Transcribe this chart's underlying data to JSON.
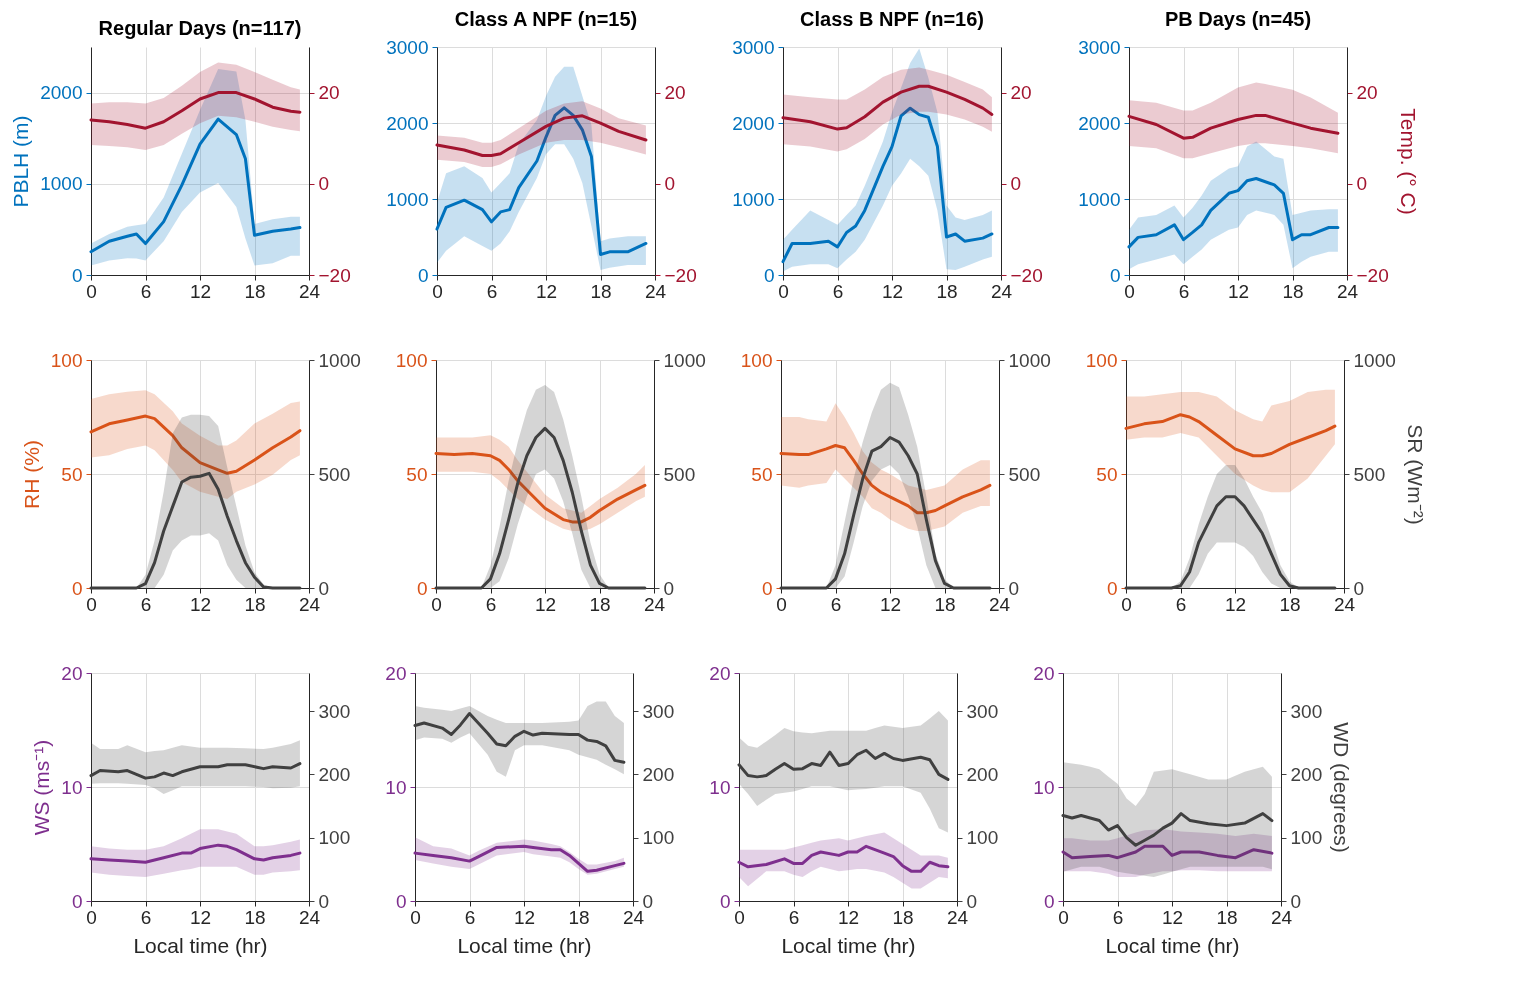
{
  "chart_data": [
    {
      "type": "line",
      "title": "Regular Days (n=117)",
      "ylabel": "PBLH (m)",
      "xlim": [
        0,
        24
      ],
      "xticks": [
        0,
        6,
        12,
        18,
        24
      ],
      "ylim": [
        0,
        2500
      ],
      "yticks": [
        0,
        1000,
        2000
      ],
      "y2lim": [
        -20,
        30
      ],
      "y2ticks": [
        -20,
        0,
        20
      ],
      "grid": true,
      "series": [
        {
          "color": "#0072bd",
          "x": [
            0,
            2,
            4,
            5,
            6,
            8,
            10,
            12,
            14,
            16,
            17,
            18,
            20,
            22,
            23
          ],
          "values": [
            255,
            370,
            425,
            450,
            345,
            585,
            985,
            1435,
            1710,
            1540,
            1275,
            435,
            480,
            505,
            520
          ],
          "lower": [
            105,
            160,
            185,
            180,
            160,
            370,
            690,
            905,
            1010,
            745,
            400,
            105,
            130,
            210,
            210
          ],
          "upper": [
            345,
            450,
            530,
            545,
            560,
            850,
            1330,
            1810,
            2260,
            2230,
            1700,
            560,
            610,
            640,
            640
          ]
        },
        {
          "color": "#a2142f",
          "axis": "y2",
          "x": [
            0,
            2,
            4,
            6,
            8,
            10,
            12,
            14,
            16,
            18,
            20,
            22,
            23
          ],
          "values": [
            14.0,
            13.6,
            13.0,
            12.2,
            13.6,
            16.0,
            18.6,
            20.0,
            20.0,
            18.6,
            16.8,
            15.9,
            15.7
          ],
          "lower": [
            8.5,
            8.3,
            8.0,
            7.4,
            8.5,
            11.0,
            13.3,
            14.9,
            14.6,
            13.6,
            12.5,
            11.8,
            11.5
          ],
          "upper": [
            17.6,
            17.9,
            17.9,
            17.6,
            18.8,
            21.5,
            24.5,
            26.6,
            26.1,
            24.5,
            22.8,
            21.2,
            20.7
          ]
        }
      ]
    },
    {
      "type": "line",
      "title": "Class A NPF (n=15)",
      "xlim": [
        0,
        24
      ],
      "xticks": [
        0,
        6,
        12,
        18,
        24
      ],
      "ylim": [
        0,
        3000
      ],
      "yticks": [
        0,
        1000,
        2000,
        3000
      ],
      "y2lim": [
        -20,
        30
      ],
      "y2ticks": [
        -20,
        0,
        20
      ],
      "grid": true,
      "series": [
        {
          "color": "#0072bd",
          "x": [
            0,
            1,
            3,
            5,
            6,
            7,
            8,
            9,
            11,
            12,
            13,
            14,
            15,
            16,
            17,
            18,
            19,
            21,
            23
          ],
          "values": [
            605,
            890,
            985,
            860,
            700,
            830,
            860,
            1150,
            1500,
            1815,
            2100,
            2200,
            2100,
            1910,
            1560,
            270,
            305,
            305,
            415
          ],
          "lower": [
            160,
            320,
            510,
            380,
            320,
            415,
            575,
            830,
            1275,
            1590,
            1720,
            1720,
            1530,
            1210,
            640,
            65,
            95,
            130,
            130
          ],
          "upper": [
            955,
            1340,
            1430,
            1275,
            1085,
            1210,
            1340,
            1720,
            2040,
            2355,
            2610,
            2740,
            2740,
            2355,
            1975,
            445,
            480,
            510,
            510
          ]
        },
        {
          "color": "#a2142f",
          "axis": "y2",
          "x": [
            0,
            3,
            5,
            6,
            7,
            9,
            12,
            14,
            16,
            18,
            20,
            23
          ],
          "values": [
            8.5,
            7.4,
            6.2,
            6.2,
            6.6,
            9.0,
            12.6,
            14.4,
            14.9,
            13.3,
            11.5,
            9.6
          ],
          "lower": [
            5.3,
            4.8,
            3.7,
            3.7,
            4.3,
            6.4,
            9.0,
            9.6,
            9.6,
            9.0,
            8.0,
            6.4
          ],
          "upper": [
            10.6,
            10.1,
            9.0,
            9.0,
            9.6,
            12.2,
            16.0,
            17.6,
            18.1,
            16.5,
            14.4,
            12.8
          ]
        }
      ]
    },
    {
      "type": "line",
      "title": "Class B NPF (n=16)",
      "xlim": [
        0,
        24
      ],
      "xticks": [
        0,
        6,
        12,
        18,
        24
      ],
      "ylim": [
        0,
        3000
      ],
      "yticks": [
        0,
        1000,
        2000,
        3000
      ],
      "y2lim": [
        -20,
        30
      ],
      "y2ticks": [
        -20,
        0,
        20
      ],
      "grid": true,
      "series": [
        {
          "color": "#0072bd",
          "x": [
            0,
            1,
            3,
            5,
            6,
            7,
            8,
            9,
            11,
            12,
            13,
            14,
            15,
            16,
            17,
            18,
            19,
            20,
            22,
            23
          ],
          "values": [
            175,
            415,
            415,
            445,
            370,
            560,
            645,
            850,
            1430,
            1690,
            2095,
            2195,
            2110,
            2075,
            1690,
            500,
            540,
            445,
            485,
            540
          ],
          "lower": [
            45,
            110,
            140,
            140,
            90,
            205,
            305,
            465,
            915,
            1175,
            1335,
            1530,
            1430,
            1305,
            850,
            75,
            65,
            110,
            205,
            240
          ],
          "upper": [
            465,
            595,
            850,
            725,
            660,
            790,
            915,
            1175,
            1755,
            2140,
            2465,
            2790,
            2980,
            2595,
            2140,
            915,
            755,
            725,
            790,
            850
          ]
        },
        {
          "color": "#a2142f",
          "axis": "y2",
          "x": [
            0,
            3,
            6,
            7,
            9,
            11,
            13,
            15,
            16,
            18,
            20,
            22,
            23
          ],
          "values": [
            14.5,
            13.6,
            12.0,
            12.3,
            14.7,
            17.9,
            20.1,
            21.4,
            21.4,
            20.1,
            18.5,
            16.6,
            15.2
          ],
          "lower": [
            8.7,
            8.2,
            7.1,
            7.6,
            9.8,
            13.0,
            15.2,
            15.8,
            15.8,
            15.2,
            14.1,
            12.5,
            11.4
          ],
          "upper": [
            19.6,
            19.0,
            18.5,
            18.5,
            20.7,
            23.4,
            25.0,
            25.5,
            25.0,
            23.9,
            22.3,
            20.7,
            19.0
          ]
        }
      ]
    },
    {
      "type": "line",
      "title": "PB Days (n=45)",
      "y2label": "Temp. (° C)",
      "xlim": [
        0,
        24
      ],
      "xticks": [
        0,
        6,
        12,
        18,
        24
      ],
      "ylim": [
        0,
        3000
      ],
      "yticks": [
        0,
        1000,
        2000,
        3000
      ],
      "y2lim": [
        -20,
        30
      ],
      "y2ticks": [
        -20,
        0,
        20
      ],
      "grid": true,
      "series": [
        {
          "color": "#0072bd",
          "x": [
            0,
            1,
            3,
            5,
            6,
            7,
            8,
            9,
            11,
            12,
            13,
            14,
            16,
            17,
            18,
            19,
            20,
            22,
            23
          ],
          "values": [
            370,
            495,
            530,
            660,
            465,
            560,
            660,
            850,
            1075,
            1110,
            1240,
            1270,
            1185,
            1075,
            465,
            530,
            530,
            625,
            625
          ],
          "lower": [
            75,
            140,
            205,
            270,
            140,
            240,
            335,
            465,
            595,
            625,
            790,
            850,
            790,
            660,
            90,
            175,
            240,
            305,
            305
          ],
          "upper": [
            595,
            755,
            790,
            915,
            755,
            885,
            1045,
            1240,
            1400,
            1430,
            1690,
            1755,
            1560,
            1530,
            790,
            820,
            850,
            865,
            865
          ]
        },
        {
          "color": "#a2142f",
          "axis": "y2",
          "x": [
            0,
            3,
            6,
            7,
            9,
            12,
            14,
            15,
            18,
            20,
            23
          ],
          "values": [
            14.8,
            13.0,
            10.0,
            10.2,
            12.2,
            14.1,
            15.0,
            15.0,
            13.3,
            12.2,
            11.1
          ],
          "lower": [
            8.3,
            7.8,
            5.6,
            5.6,
            6.7,
            8.3,
            8.9,
            8.9,
            8.3,
            7.8,
            6.7
          ],
          "upper": [
            18.3,
            17.8,
            16.1,
            16.1,
            17.8,
            21.1,
            22.2,
            21.9,
            20.6,
            18.9,
            15.6
          ]
        }
      ]
    },
    {
      "type": "line",
      "ylabel": "RH (%)",
      "xlim": [
        0,
        24
      ],
      "xticks": [
        0,
        6,
        12,
        18,
        24
      ],
      "ylim": [
        0,
        100
      ],
      "yticks": [
        0,
        50,
        100
      ],
      "y2lim": [
        0,
        1000
      ],
      "y2ticks": [
        0,
        500,
        1000
      ],
      "grid": true,
      "series": [
        {
          "color": "#d95319",
          "x": [
            0,
            2,
            4,
            6,
            7,
            9,
            10,
            12,
            14,
            15,
            16,
            18,
            20,
            22,
            23
          ],
          "values": [
            68.5,
            72,
            73.7,
            75.4,
            74.3,
            66.8,
            61.5,
            55,
            51.8,
            50.3,
            51.2,
            56.1,
            61.5,
            66.2,
            69
          ],
          "lower": [
            57.2,
            58.2,
            61,
            62.5,
            60.4,
            51.8,
            46.5,
            42.2,
            40,
            39,
            42.2,
            45.4,
            49.7,
            56.1,
            58.2
          ],
          "upper": [
            82.9,
            85,
            86.1,
            86.7,
            85,
            77.5,
            72.2,
            66.8,
            62.5,
            62.5,
            64.7,
            72.2,
            76.4,
            81.1,
            81.8
          ]
        },
        {
          "color": "#404040",
          "axis": "y2",
          "x": [
            0,
            5,
            6,
            7,
            8,
            9,
            10,
            11,
            12,
            13,
            14,
            15,
            16,
            17,
            18,
            19,
            20,
            23
          ],
          "values": [
            0,
            0,
            19,
            111,
            250,
            358,
            465,
            486,
            490,
            503,
            433,
            315,
            208,
            111,
            47,
            4,
            0,
            0
          ],
          "lower": [
            0,
            0,
            0,
            0,
            58,
            165,
            208,
            230,
            230,
            240,
            208,
            100,
            36,
            0,
            0,
            0,
            0,
            0
          ],
          "upper": [
            0,
            0,
            58,
            208,
            422,
            679,
            748,
            760,
            760,
            754,
            711,
            529,
            358,
            186,
            69,
            15,
            0,
            0
          ]
        }
      ]
    },
    {
      "type": "line",
      "xlim": [
        0,
        24
      ],
      "xticks": [
        0,
        6,
        12,
        18,
        24
      ],
      "ylim": [
        0,
        100
      ],
      "yticks": [
        0,
        50,
        100
      ],
      "y2lim": [
        0,
        1000
      ],
      "y2ticks": [
        0,
        500,
        1000
      ],
      "grid": true,
      "series": [
        {
          "color": "#d95319",
          "x": [
            0,
            2,
            4,
            6,
            7,
            8,
            9,
            10,
            12,
            14,
            15,
            16,
            17,
            18,
            20,
            22,
            23
          ],
          "values": [
            59,
            58.5,
            59,
            58,
            56,
            52,
            47,
            43,
            35,
            30,
            29,
            29,
            31,
            34,
            39,
            43,
            45
          ],
          "lower": [
            51,
            51,
            51,
            50,
            47,
            43,
            39,
            36,
            30,
            26,
            25,
            25,
            26,
            28,
            33,
            38,
            40
          ],
          "upper": [
            66,
            66,
            66,
            67,
            65,
            62,
            56,
            51,
            41,
            35,
            34,
            33,
            36,
            39,
            44,
            50,
            54
          ]
        },
        {
          "color": "#404040",
          "axis": "y2",
          "x": [
            0,
            5,
            6,
            7,
            8,
            9,
            10,
            11,
            12,
            13,
            14,
            15,
            16,
            17,
            18,
            19,
            23
          ],
          "values": [
            0,
            0,
            40,
            150,
            300,
            460,
            580,
            660,
            700,
            660,
            560,
            420,
            250,
            100,
            20,
            0,
            0
          ],
          "lower": [
            0,
            0,
            0,
            30,
            130,
            280,
            400,
            500,
            520,
            480,
            380,
            240,
            80,
            0,
            0,
            0,
            0
          ],
          "upper": [
            0,
            0,
            100,
            270,
            470,
            640,
            780,
            870,
            890,
            860,
            740,
            580,
            400,
            200,
            60,
            0,
            0
          ]
        }
      ]
    },
    {
      "type": "line",
      "xlim": [
        0,
        24
      ],
      "xticks": [
        0,
        6,
        12,
        18,
        24
      ],
      "ylim": [
        0,
        100
      ],
      "yticks": [
        0,
        50,
        100
      ],
      "y2lim": [
        0,
        1000
      ],
      "y2ticks": [
        0,
        500,
        1000
      ],
      "grid": true,
      "series": [
        {
          "color": "#d95319",
          "x": [
            0,
            2,
            3,
            5,
            6,
            7,
            8,
            9,
            10,
            11,
            12,
            14,
            15,
            16,
            17,
            18,
            20,
            22,
            23
          ],
          "values": [
            59,
            58.5,
            58.5,
            61,
            62.5,
            61.5,
            56,
            50,
            45,
            42,
            40,
            36,
            33,
            33,
            34,
            36,
            40,
            43,
            45
          ],
          "lower": [
            45,
            44,
            45,
            46,
            52,
            48,
            44,
            40,
            35,
            33,
            30,
            26,
            25,
            25,
            26,
            27,
            33,
            36,
            36
          ],
          "upper": [
            75,
            75,
            74,
            73,
            81,
            75,
            68,
            60,
            55,
            52,
            50,
            45,
            44,
            43,
            44,
            45,
            52,
            56,
            56
          ]
        },
        {
          "color": "#404040",
          "axis": "y2",
          "x": [
            0,
            5,
            6,
            7,
            8,
            9,
            10,
            11,
            12,
            13,
            14,
            15,
            16,
            17,
            18,
            19,
            23
          ],
          "values": [
            0,
            0,
            40,
            150,
            320,
            480,
            600,
            620,
            660,
            640,
            580,
            500,
            300,
            120,
            20,
            0,
            0
          ],
          "lower": [
            0,
            0,
            0,
            50,
            200,
            360,
            470,
            520,
            540,
            500,
            400,
            270,
            100,
            0,
            0,
            0,
            0
          ],
          "upper": [
            0,
            0,
            100,
            290,
            480,
            640,
            770,
            870,
            900,
            880,
            760,
            620,
            400,
            150,
            40,
            0,
            0
          ]
        }
      ]
    },
    {
      "type": "line",
      "y2label": "SR (Wm⁻²)",
      "xlim": [
        0,
        24
      ],
      "xticks": [
        0,
        6,
        12,
        18,
        24
      ],
      "ylim": [
        0,
        100
      ],
      "yticks": [
        0,
        50,
        100
      ],
      "y2lim": [
        0,
        1000
      ],
      "y2ticks": [
        0,
        500,
        1000
      ],
      "grid": true,
      "series": [
        {
          "color": "#d95319",
          "x": [
            0,
            2,
            4,
            6,
            7,
            8,
            10,
            12,
            14,
            15,
            16,
            18,
            20,
            22,
            23
          ],
          "values": [
            70,
            72,
            73,
            76,
            75,
            73,
            67,
            61,
            58,
            58,
            59,
            63,
            66,
            69,
            71
          ],
          "lower": [
            65,
            66,
            66,
            68,
            67,
            66,
            58,
            50,
            45,
            43,
            42,
            42,
            48,
            58,
            63
          ],
          "upper": [
            84,
            84,
            85,
            86,
            86,
            86,
            84,
            78,
            74,
            73,
            80,
            82,
            86,
            87,
            87
          ]
        },
        {
          "color": "#404040",
          "axis": "y2",
          "x": [
            0,
            5,
            6,
            7,
            8,
            9,
            10,
            11,
            12,
            13,
            14,
            15,
            16,
            17,
            18,
            19,
            23
          ],
          "values": [
            0,
            0,
            10,
            70,
            200,
            280,
            360,
            400,
            400,
            360,
            300,
            240,
            150,
            60,
            10,
            0,
            0
          ],
          "lower": [
            0,
            0,
            0,
            0,
            60,
            150,
            200,
            200,
            200,
            180,
            140,
            70,
            20,
            0,
            0,
            0,
            0
          ],
          "upper": [
            0,
            0,
            30,
            130,
            280,
            400,
            500,
            540,
            540,
            480,
            400,
            330,
            220,
            100,
            30,
            0,
            0
          ]
        }
      ]
    },
    {
      "type": "line",
      "xlabel": "Local time (hr)",
      "ylabel": "WS (ms⁻¹)",
      "xlim": [
        0,
        24
      ],
      "xticks": [
        0,
        6,
        12,
        18,
        24
      ],
      "ylim": [
        0,
        20
      ],
      "yticks": [
        0,
        10,
        20
      ],
      "y2lim": [
        0,
        360
      ],
      "y2ticks": [
        0,
        100,
        200,
        300
      ],
      "grid": true,
      "series": [
        {
          "color": "#7e2f8e",
          "x": [
            0,
            2,
            4,
            6,
            8,
            10,
            11,
            12,
            14,
            15,
            16,
            18,
            19,
            20,
            22,
            23
          ],
          "values": [
            3.7,
            3.6,
            3.5,
            3.4,
            3.8,
            4.2,
            4.2,
            4.6,
            4.9,
            4.8,
            4.5,
            3.7,
            3.6,
            3.8,
            4.0,
            4.2
          ],
          "lower": [
            2.5,
            2.3,
            2.2,
            2.1,
            2.4,
            2.7,
            2.8,
            3.0,
            3.0,
            3.0,
            3.0,
            2.3,
            2.3,
            2.5,
            2.6,
            2.7
          ],
          "upper": [
            4.8,
            4.6,
            4.5,
            4.5,
            4.8,
            5.5,
            5.9,
            6.3,
            6.3,
            6.1,
            5.9,
            4.8,
            4.8,
            4.9,
            5.2,
            5.4
          ]
        },
        {
          "color": "#404040",
          "axis": "y2",
          "x": [
            0,
            1,
            3,
            4,
            6,
            7,
            8,
            9,
            10,
            12,
            14,
            15,
            17,
            19,
            20,
            22,
            23
          ],
          "values": [
            198,
            206,
            204,
            206,
            194,
            196,
            202,
            198,
            204,
            212,
            212,
            215,
            215,
            209,
            212,
            210,
            217
          ],
          "lower": [
            185,
            186,
            186,
            185,
            183,
            178,
            169,
            175,
            181,
            181,
            181,
            181,
            181,
            180,
            178,
            179,
            181
          ],
          "upper": [
            250,
            240,
            240,
            246,
            235,
            237,
            238,
            242,
            246,
            242,
            242,
            242,
            241,
            240,
            242,
            248,
            254
          ]
        }
      ]
    },
    {
      "type": "line",
      "xlabel": "Local time (hr)",
      "xlim": [
        0,
        24
      ],
      "xticks": [
        0,
        6,
        12,
        18,
        24
      ],
      "ylim": [
        0,
        20
      ],
      "yticks": [
        0,
        10,
        20
      ],
      "y2lim": [
        0,
        360
      ],
      "y2ticks": [
        0,
        100,
        200,
        300
      ],
      "grid": true,
      "series": [
        {
          "color": "#7e2f8e",
          "x": [
            0,
            2,
            4,
            6,
            7,
            9,
            12,
            13,
            15,
            16,
            17,
            18,
            19,
            20,
            22,
            23
          ],
          "values": [
            4.2,
            4.0,
            3.8,
            3.5,
            3.9,
            4.7,
            4.8,
            4.7,
            4.5,
            4.5,
            4.0,
            3.3,
            2.6,
            2.7,
            3.1,
            3.3
          ],
          "lower": [
            3.6,
            3.3,
            3.0,
            2.8,
            3.2,
            4.0,
            4.3,
            4.1,
            3.9,
            3.8,
            3.4,
            2.8,
            2.3,
            2.4,
            2.8,
            3.0
          ],
          "upper": [
            5.6,
            4.8,
            4.6,
            4.0,
            4.4,
            5.1,
            5.4,
            5.3,
            5.0,
            4.8,
            4.3,
            3.7,
            3.2,
            3.2,
            3.5,
            3.8
          ]
        },
        {
          "color": "#404040",
          "axis": "y2",
          "x": [
            0,
            1,
            3,
            4,
            5,
            6,
            8,
            9,
            10,
            11,
            12,
            13,
            14,
            17,
            18,
            19,
            20,
            21,
            22,
            23
          ],
          "values": [
            277,
            281,
            273,
            263,
            278,
            296,
            265,
            248,
            245,
            260,
            268,
            262,
            265,
            263,
            263,
            254,
            252,
            245,
            222,
            219
          ],
          "lower": [
            254,
            258,
            256,
            250,
            258,
            265,
            231,
            204,
            196,
            238,
            246,
            246,
            246,
            238,
            231,
            227,
            223,
            215,
            208,
            200
          ],
          "upper": [
            308,
            305,
            302,
            300,
            304,
            308,
            292,
            286,
            281,
            281,
            281,
            281,
            281,
            283,
            285,
            308,
            315,
            315,
            292,
            281
          ]
        }
      ]
    },
    {
      "type": "line",
      "xlabel": "Local time (hr)",
      "xlim": [
        0,
        24
      ],
      "xticks": [
        0,
        6,
        12,
        18,
        24
      ],
      "ylim": [
        0,
        20
      ],
      "yticks": [
        0,
        10,
        20
      ],
      "y2lim": [
        0,
        360
      ],
      "y2ticks": [
        0,
        100,
        200,
        300
      ],
      "grid": true,
      "series": [
        {
          "color": "#7e2f8e",
          "x": [
            0,
            1,
            3,
            5,
            6,
            7,
            8,
            9,
            11,
            12,
            13,
            14,
            16,
            17,
            18,
            19,
            20,
            21,
            22,
            23
          ],
          "values": [
            3.4,
            3.0,
            3.2,
            3.7,
            3.3,
            3.3,
            4.0,
            4.3,
            4.0,
            4.3,
            4.3,
            4.8,
            4.2,
            3.9,
            3.1,
            2.6,
            2.6,
            3.4,
            3.1,
            3.0
          ],
          "lower": [
            2.1,
            1.3,
            2.6,
            2.6,
            2.3,
            2.1,
            2.6,
            3.0,
            2.6,
            2.7,
            2.8,
            2.8,
            2.5,
            2.1,
            1.6,
            1.1,
            1.1,
            1.6,
            2.1,
            2.0
          ],
          "upper": [
            4.5,
            4.5,
            4.5,
            4.5,
            4.7,
            4.9,
            5.1,
            5.3,
            5.5,
            5.3,
            5.5,
            5.7,
            6.0,
            5.5,
            5.0,
            4.5,
            4.0,
            4.0,
            4.0,
            3.8
          ]
        },
        {
          "color": "#404040",
          "axis": "y2",
          "x": [
            0,
            1,
            2,
            3,
            4,
            5,
            6,
            7,
            8,
            9,
            10,
            11,
            12,
            13,
            14,
            15,
            16,
            17,
            18,
            20,
            21,
            22,
            23
          ],
          "values": [
            215,
            198,
            196,
            198,
            208,
            217,
            208,
            209,
            217,
            214,
            235,
            214,
            217,
            231,
            238,
            225,
            233,
            225,
            222,
            227,
            223,
            200,
            192
          ],
          "lower": [
            185,
            169,
            150,
            160,
            169,
            171,
            173,
            177,
            181,
            181,
            181,
            178,
            175,
            176,
            177,
            179,
            181,
            181,
            181,
            171,
            146,
            115,
            108
          ],
          "upper": [
            258,
            245,
            242,
            252,
            262,
            273,
            268,
            266,
            265,
            267,
            269,
            269,
            269,
            269,
            269,
            273,
            277,
            275,
            273,
            277,
            288,
            300,
            285
          ]
        }
      ]
    },
    {
      "type": "line",
      "xlabel": "Local time (hr)",
      "y2label": "WD (degrees)",
      "xlim": [
        0,
        24
      ],
      "xticks": [
        0,
        6,
        12,
        18,
        24
      ],
      "ylim": [
        0,
        20
      ],
      "yticks": [
        0,
        10,
        20
      ],
      "y2lim": [
        0,
        360
      ],
      "y2ticks": [
        0,
        100,
        200,
        300
      ],
      "grid": true,
      "series": [
        {
          "color": "#7e2f8e",
          "x": [
            0,
            1,
            3,
            5,
            6,
            8,
            9,
            11,
            12,
            13,
            15,
            17,
            19,
            21,
            23
          ],
          "values": [
            4.3,
            3.8,
            3.9,
            4.0,
            3.8,
            4.3,
            4.8,
            4.8,
            4.0,
            4.3,
            4.3,
            4.0,
            3.8,
            4.5,
            4.2
          ],
          "lower": [
            2.6,
            2.6,
            2.6,
            2.4,
            2.1,
            2.1,
            2.3,
            2.6,
            2.6,
            2.7,
            2.7,
            2.6,
            2.6,
            2.6,
            2.6
          ],
          "upper": [
            5.5,
            5.5,
            5.3,
            5.3,
            5.5,
            6.0,
            6.2,
            6.3,
            6.2,
            6.1,
            6.0,
            5.9,
            5.7,
            5.9,
            5.7
          ]
        },
        {
          "color": "#404040",
          "axis": "y2",
          "x": [
            0,
            1,
            2,
            3,
            4,
            5,
            6,
            7,
            8,
            9,
            10,
            11,
            12,
            13,
            14,
            16,
            18,
            20,
            22,
            23
          ],
          "values": [
            135,
            131,
            135,
            131,
            127,
            112,
            119,
            100,
            88,
            96,
            104,
            115,
            123,
            138,
            127,
            122,
            119,
            123,
            138,
            127
          ],
          "lower": [
            46,
            50,
            54,
            54,
            54,
            50,
            46,
            44,
            42,
            40,
            38,
            42,
            46,
            50,
            54,
            54,
            54,
            54,
            54,
            50
          ],
          "upper": [
            219,
            217,
            215,
            212,
            208,
            196,
            185,
            162,
            150,
            169,
            204,
            206,
            208,
            204,
            200,
            192,
            192,
            204,
            212,
            196
          ]
        }
      ]
    }
  ]
}
